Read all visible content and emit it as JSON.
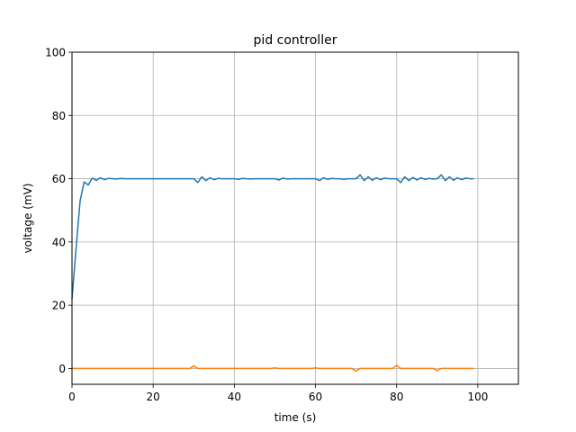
{
  "chart_data": {
    "type": "line",
    "title": "pid controller",
    "xlabel": "time (s)",
    "ylabel": "voltage (mV)",
    "xlim": [
      0,
      110
    ],
    "ylim": [
      -5,
      100
    ],
    "xticks": [
      "0",
      "20",
      "40",
      "60",
      "80",
      "100"
    ],
    "yticks": [
      "0",
      "20",
      "40",
      "60",
      "80",
      "100"
    ],
    "grid": true,
    "colors": [
      "#1f77b4",
      "#ff7f0e"
    ],
    "series": [
      {
        "x": [
          0,
          1,
          2,
          3,
          4,
          5,
          6,
          7,
          8,
          9,
          10,
          11,
          12,
          13,
          14,
          15,
          16,
          17,
          18,
          19,
          20,
          21,
          22,
          23,
          24,
          25,
          26,
          27,
          28,
          29,
          30,
          31,
          32,
          33,
          34,
          35,
          36,
          37,
          38,
          39,
          40,
          41,
          42,
          43,
          44,
          45,
          46,
          47,
          48,
          49,
          50,
          51,
          52,
          53,
          54,
          55,
          56,
          57,
          58,
          59,
          60,
          61,
          62,
          63,
          64,
          65,
          66,
          67,
          68,
          69,
          70,
          71,
          72,
          73,
          74,
          75,
          76,
          77,
          78,
          79,
          80,
          81,
          82,
          83,
          84,
          85,
          86,
          87,
          88,
          89,
          90,
          91,
          92,
          93,
          94,
          95,
          96,
          97,
          98,
          99
        ],
        "values": [
          22,
          38,
          53,
          59,
          58,
          60.2,
          59.5,
          60.3,
          59.7,
          60.1,
          60,
          59.9,
          60.1,
          60,
          60,
          60,
          60,
          60,
          60,
          60,
          60,
          60,
          60,
          60,
          60,
          60,
          60,
          60,
          60,
          60,
          60,
          58.8,
          60.6,
          59.4,
          60.3,
          59.7,
          60.1,
          60,
          60,
          60,
          60,
          59.8,
          60.1,
          60,
          59.9,
          60,
          60,
          60,
          60,
          60,
          60,
          59.6,
          60.2,
          59.9,
          60,
          60,
          60,
          60,
          60,
          60,
          60,
          59.4,
          60.3,
          59.8,
          60.1,
          60,
          60,
          59.8,
          60,
          60,
          60,
          61.2,
          59.4,
          60.6,
          59.5,
          60.3,
          59.7,
          60.2,
          60,
          60,
          60,
          58.8,
          60.6,
          59.4,
          60.4,
          59.6,
          60.3,
          59.8,
          60.1,
          59.9,
          60,
          61.2,
          59.4,
          60.6,
          59.5,
          60.3,
          59.7,
          60.2,
          60,
          60
        ]
      },
      {
        "x": [
          0,
          1,
          2,
          3,
          4,
          5,
          6,
          7,
          8,
          9,
          10,
          11,
          12,
          13,
          14,
          15,
          16,
          17,
          18,
          19,
          20,
          21,
          22,
          23,
          24,
          25,
          26,
          27,
          28,
          29,
          30,
          31,
          32,
          33,
          34,
          35,
          36,
          37,
          38,
          39,
          40,
          41,
          42,
          43,
          44,
          45,
          46,
          47,
          48,
          49,
          50,
          51,
          52,
          53,
          54,
          55,
          56,
          57,
          58,
          59,
          60,
          61,
          62,
          63,
          64,
          65,
          66,
          67,
          68,
          69,
          70,
          71,
          72,
          73,
          74,
          75,
          76,
          77,
          78,
          79,
          80,
          81,
          82,
          83,
          84,
          85,
          86,
          87,
          88,
          89,
          90,
          91,
          92,
          93,
          94,
          95,
          96,
          97,
          98,
          99
        ],
        "values": [
          0,
          0,
          0,
          0,
          0,
          0,
          0,
          0,
          0,
          0,
          0,
          0,
          0,
          0,
          0,
          0,
          0,
          0,
          0,
          0,
          0,
          0,
          0,
          0,
          0,
          0,
          0,
          0,
          0,
          0,
          0.8,
          0,
          0,
          0,
          0,
          0,
          0,
          0,
          0,
          0,
          0,
          0,
          0,
          0,
          0,
          0,
          0,
          0,
          0,
          0,
          0.2,
          0,
          0,
          0,
          0,
          0,
          0,
          0,
          0,
          0,
          0.2,
          0,
          0,
          0,
          0,
          0,
          0,
          0,
          0,
          0,
          -0.8,
          0,
          0,
          0,
          0,
          0,
          0,
          0,
          0,
          0,
          1,
          0,
          0,
          0,
          0,
          0,
          0,
          0,
          0,
          0,
          -0.7,
          0,
          0,
          0,
          0,
          0,
          0,
          0,
          0,
          0
        ]
      }
    ]
  }
}
